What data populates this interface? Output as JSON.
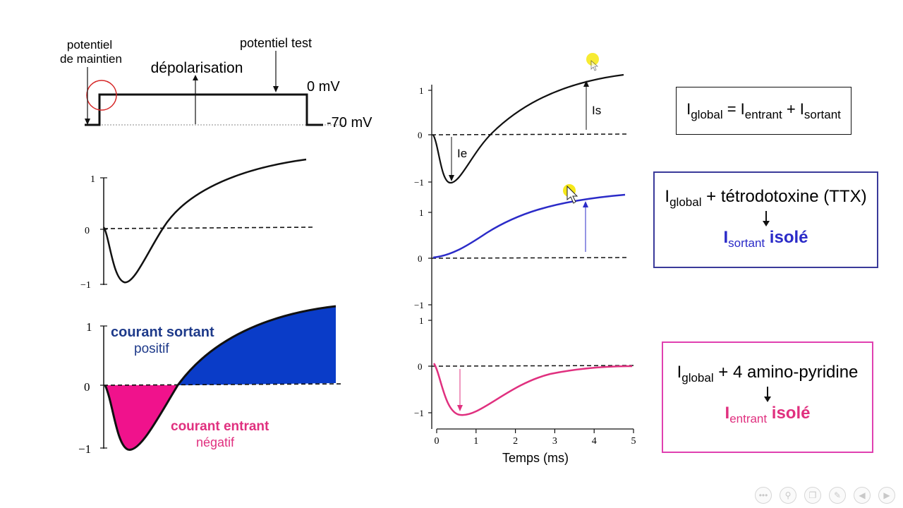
{
  "top_left_protocol": {
    "label_holding_1": "potentiel",
    "label_holding_2": "de maintien",
    "label_depolarisation": "dépolarisation",
    "label_test": "potentiel test",
    "label_0mv": "0 mV",
    "label_minus70mv": "-70 mV"
  },
  "left_tick_labels": {
    "one": "1",
    "zero": "0",
    "minus_one": "−1"
  },
  "filled_plot": {
    "outward_label_1": "courant sortant",
    "outward_label_2": "positif",
    "inward_label_1": "courant entrant",
    "inward_label_2": "négatif"
  },
  "right_plots": {
    "ie_label": "Ie",
    "is_label": "Is",
    "x_axis_title": "Temps (ms)",
    "x_ticks": [
      "0",
      "1",
      "2",
      "3",
      "4",
      "5"
    ]
  },
  "box_global": {
    "I": "I",
    "global": "global",
    "eq": " = I",
    "entrant": "entrant",
    "plus": " + I",
    "sortant": "sortant"
  },
  "box_ttx": {
    "I": "I",
    "global": "global",
    "rest": " + tétrodotoxine (TTX)",
    "I2": "I",
    "sortant": "sortant",
    "isole": " isolé"
  },
  "box_4ap": {
    "I": "I",
    "global": "global",
    "rest": " + 4 amino-pyridine",
    "I2": "I",
    "entrant": "entrant",
    "isole": " isolé"
  },
  "colors": {
    "blue_trace": "#2b2bc8",
    "magenta_trace": "#e0307f",
    "fill_blue": "#0a3cc8",
    "fill_magenta": "#f0128c",
    "label_blue": "#1e3a8a",
    "label_magenta": "#e0307f",
    "box_ttx_border": "#3a3a9a",
    "box_4ap_border": "#e040b0"
  },
  "toolbar_icons": [
    "more-icon",
    "zoom-icon",
    "copy-icon",
    "pen-icon",
    "previous-icon",
    "next-icon"
  ]
}
